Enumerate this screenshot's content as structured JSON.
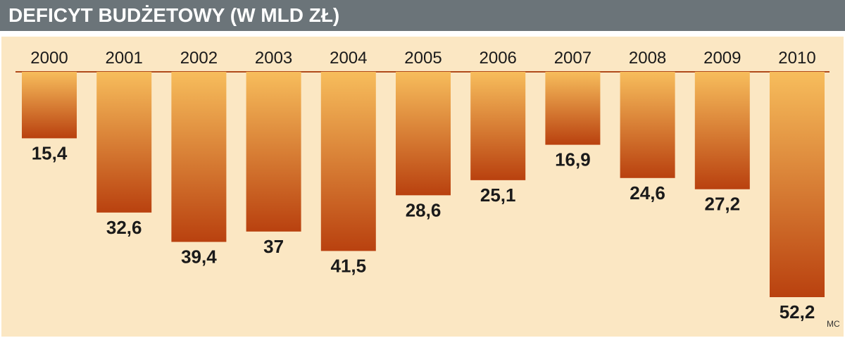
{
  "title": "DEFICYT BUDŻETOWY (W MLD ZŁ)",
  "credit": "MC",
  "colors": {
    "header_bg": "#6b7479",
    "panel_bg": "#fbe7c3",
    "bar_top": "#f7bd5c",
    "bar_bottom": "#b9410f",
    "baseline": "#b04a1a",
    "text": "#1a1a1a"
  },
  "chart_data": {
    "type": "bar",
    "orientation": "downward",
    "categories": [
      "2000",
      "2001",
      "2002",
      "2003",
      "2004",
      "2005",
      "2006",
      "2007",
      "2008",
      "2009",
      "2010"
    ],
    "values": [
      15.4,
      32.6,
      39.4,
      37,
      41.5,
      28.6,
      25.1,
      16.9,
      24.6,
      27.2,
      52.2
    ],
    "value_labels": [
      "15,4",
      "32,6",
      "39,4",
      "37",
      "41,5",
      "28,6",
      "25,1",
      "16,9",
      "24,6",
      "27,2",
      "52,2"
    ],
    "title": "DEFICYT BUDŻETOWY (W MLD ZŁ)",
    "xlabel": "",
    "ylabel": "",
    "ylim": [
      0,
      52.2
    ],
    "grid": false,
    "legend": "none"
  }
}
